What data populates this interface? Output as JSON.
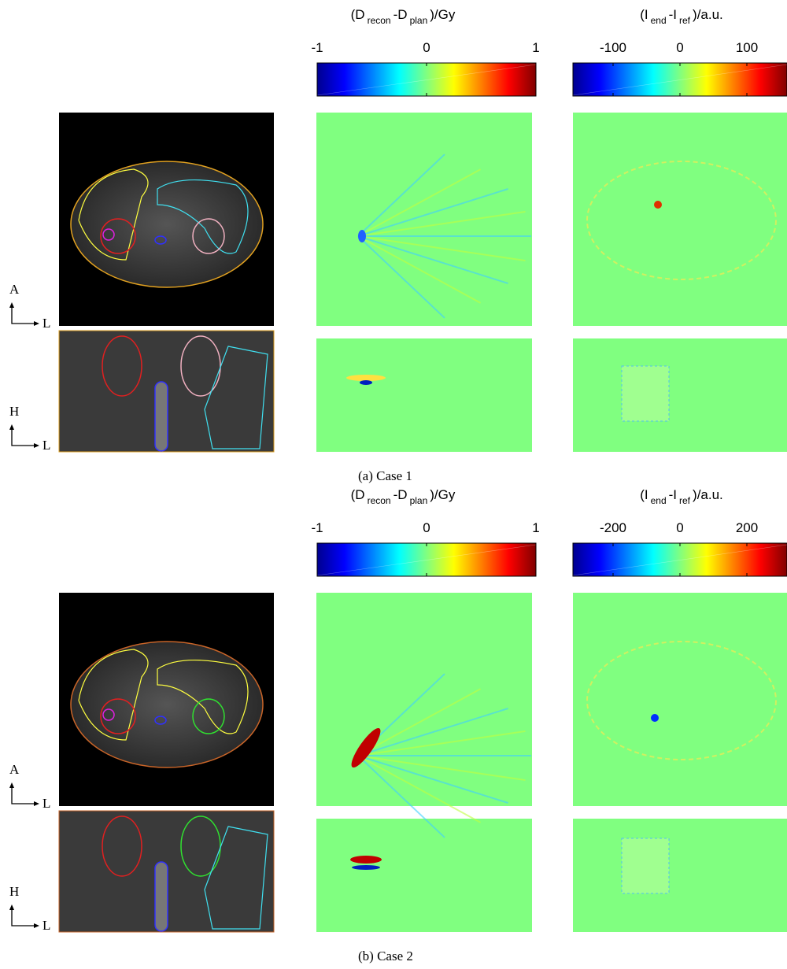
{
  "cases": [
    {
      "caption": "(a) Case 1",
      "orientation": [
        {
          "up": "A",
          "right": "L"
        },
        {
          "up": "H",
          "right": "L"
        }
      ],
      "colorbars": [
        {
          "title": [
            "(D",
            "recon",
            "-D",
            "plan",
            ")/Gy"
          ],
          "lim": [
            -1,
            1
          ],
          "ticks": [
            -1,
            0,
            1
          ]
        },
        {
          "title": [
            "(I",
            "end",
            "-I",
            "ref",
            ")/a.u."
          ],
          "lim": [
            -160,
            160
          ],
          "ticks": [
            -100,
            0,
            100
          ]
        }
      ]
    },
    {
      "caption": "(b) Case 2",
      "orientation": [
        {
          "up": "A",
          "right": "L"
        },
        {
          "up": "H",
          "right": "L"
        }
      ],
      "colorbars": [
        {
          "title": [
            "(D",
            "recon",
            "-D",
            "plan",
            ")/Gy"
          ],
          "lim": [
            -1,
            1
          ],
          "ticks": [
            -1,
            0,
            1
          ]
        },
        {
          "title": [
            "(I",
            "end",
            "-I",
            "ref",
            ")/a.u."
          ],
          "lim": [
            -320,
            320
          ],
          "ticks": [
            -200,
            0,
            200
          ]
        }
      ]
    }
  ]
}
